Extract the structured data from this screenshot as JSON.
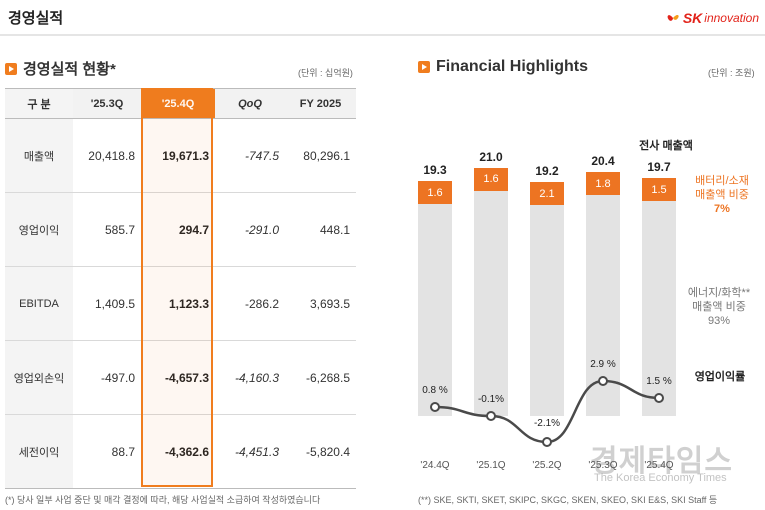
{
  "header": {
    "title": "경영실적",
    "logo_sk": "SK",
    "logo_innovation": "innovation"
  },
  "left": {
    "section_title": "경영실적 현황*",
    "unit": "(단위 : 십억원)",
    "columns": [
      "구  분",
      "'25.3Q",
      "'25.4Q",
      "QoQ",
      "FY 2025"
    ],
    "rows": [
      {
        "label": "매출액",
        "q3": "20,418.8",
        "q4": "19,671.3",
        "qoq": "-747.5",
        "fy": "80,296.1"
      },
      {
        "label": "영업이익",
        "q3": "585.7",
        "q4": "294.7",
        "qoq": "-291.0",
        "fy": "448.1"
      },
      {
        "label": "EBITDA",
        "q3": "1,409.5",
        "q4": "1,123.3",
        "qoq": "-286.2",
        "fy": "3,693.5"
      },
      {
        "label": "영업외손익",
        "q3": "-497.0",
        "q4": "-4,657.3",
        "qoq": "-4,160.3",
        "fy": "-6,268.5"
      },
      {
        "label": "세전이익",
        "q3": "88.7",
        "q4": "-4,362.6",
        "qoq": "-4,451.3",
        "fy": "-5,820.4"
      }
    ],
    "footnote": "(*) 당사 일부 사업 중단 및 매각 결정에 따라, 해당 사업실적 소급하여 작성하였습니다"
  },
  "right": {
    "section_title": "Financial Highlights",
    "unit": "(단위 : 조원)",
    "legend_total": "전사 매출액",
    "legend_battery_1": "배터리/소재",
    "legend_battery_2": "매출액 비중",
    "legend_battery_pct": "7%",
    "legend_energy_1": "에너지/화학**",
    "legend_energy_2": "매출액 비중",
    "legend_energy_pct": "93%",
    "legend_margin": "영업이익률",
    "footnote": "(**) SKE, SKTI, SKET, SKIPC, SKGC, SKEN, SKEO, SKI E&S, SKI Staff 등"
  },
  "chart_data": {
    "type": "bar",
    "title": "Financial Highlights",
    "categories": [
      "'24.4Q",
      "'25.1Q",
      "'25.2Q",
      "'25.3Q",
      "'25.4Q"
    ],
    "series": [
      {
        "name": "전사 매출액",
        "values": [
          19.3,
          21.0,
          19.2,
          20.4,
          19.7
        ],
        "labels": [
          "19.3",
          "21.0",
          "19.2",
          "20.4",
          "19.7"
        ]
      },
      {
        "name": "배터리/소재 매출액",
        "values": [
          1.6,
          1.6,
          2.1,
          1.8,
          1.5
        ],
        "labels": [
          "1.6",
          "1.6",
          "2.1",
          "1.8",
          "1.5"
        ]
      },
      {
        "name": "영업이익률",
        "type": "line",
        "values": [
          0.8,
          -0.1,
          -2.1,
          2.9,
          1.5
        ],
        "labels": [
          "0.8 %",
          "-0.1%",
          "-2.1%",
          "2.9 %",
          "1.5 %"
        ]
      }
    ],
    "ylabel": "조원",
    "colors": {
      "total": "#e3e3e3",
      "battery": "#ed7422",
      "line": "#4a4a4a",
      "accent": "#f07d1e"
    }
  },
  "watermark": {
    "main": "경제타임스",
    "sub": "The Korea Economy Times"
  }
}
